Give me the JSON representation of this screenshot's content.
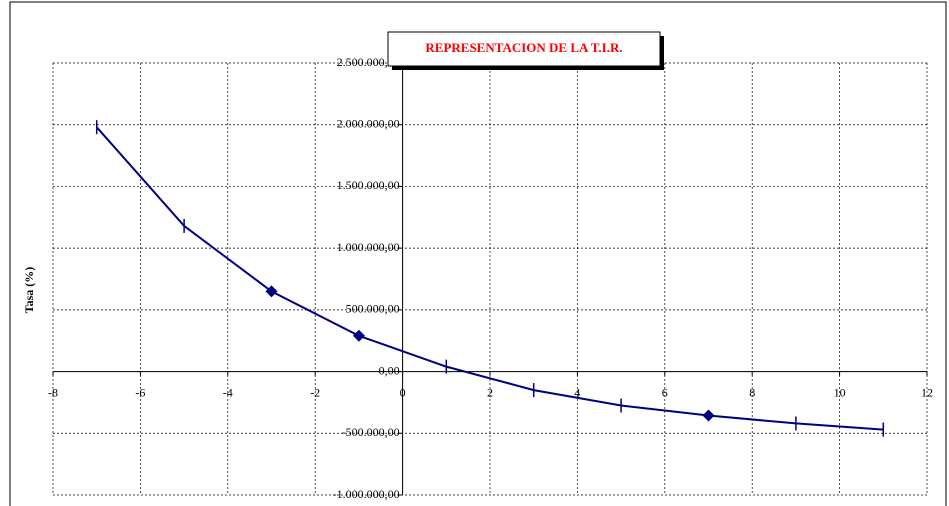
{
  "chart_data": {
    "type": "line",
    "title": "REPRESENTACION DE LA T.I.R.",
    "y_label": "Tasa (%)",
    "x": [
      -7,
      -5,
      -3,
      -1,
      1,
      3,
      5,
      7,
      9,
      11
    ],
    "series": [
      {
        "color": "#000080",
        "values": [
          1980000,
          1180000,
          650000,
          290000,
          40000,
          -150000,
          -275000,
          -356000,
          -420000,
          -470000
        ],
        "markers": [
          "dash",
          "dash",
          "diamond",
          "diamond",
          "dash",
          "dash",
          "dash",
          "diamond",
          "dash",
          "dash"
        ]
      }
    ],
    "xlim": [
      -8,
      12
    ],
    "xticks": [
      -8,
      -6,
      -4,
      -2,
      0,
      2,
      4,
      6,
      8,
      10,
      12
    ],
    "ylim": [
      -1000000,
      2500000
    ],
    "yticks": [
      {
        "value": -1000000,
        "label": "-1.000.000,00"
      },
      {
        "value": -500000,
        "label": "-500.000,00"
      },
      {
        "value": 0,
        "label": "0,00"
      },
      {
        "value": 500000,
        "label": "500.000,00"
      },
      {
        "value": 1000000,
        "label": "1.000.000,00"
      },
      {
        "value": 1500000,
        "label": "1.500.000,00"
      },
      {
        "value": 2000000,
        "label": "2.000.000,00"
      },
      {
        "value": 2500000,
        "label": "2.500.000,00"
      }
    ],
    "grid": true
  }
}
